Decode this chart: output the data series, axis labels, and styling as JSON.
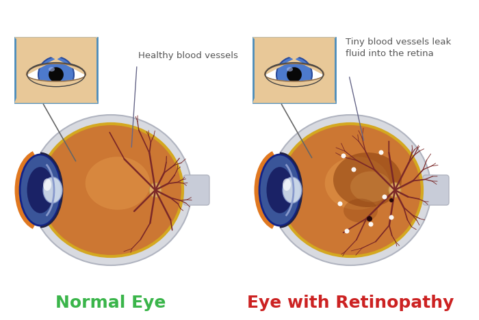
{
  "bg_color": "#ffffff",
  "title_normal": "Normal Eye",
  "title_retino": "Eye with Retinopathy",
  "title_normal_color": "#3ab54a",
  "title_retino_color": "#cc2222",
  "label_normal": "Healthy blood vessels",
  "label_retino": "Tiny blood vessels leak\nfluid into the retina",
  "label_color": "#555555",
  "sclera_color": "#d8dae0",
  "sclera_edge": "#b0b4c0",
  "retina_color": "#cc7733",
  "retina_dark": "#a85520",
  "retina_center": "#e8a050",
  "gold_ring_color": "#d4a820",
  "cornea_blue": "#4466bb",
  "cornea_dark_blue": "#2233aa",
  "cornea_edge": "#112288",
  "lens_white": "#d8e4f0",
  "lens_edge": "#8899cc",
  "vessel_color": "#7a2828",
  "optic_disc_color": "#ddaa66",
  "nerve_color": "#c8ccd8",
  "thumb_bg": "#e8c898",
  "thumb_border": "#4a8cbb",
  "lesion_brown": "#8b4010",
  "lesion_light": "#cc8844",
  "exudate_white": "#ffffff",
  "figsize": [
    7.0,
    4.68
  ],
  "dpi": 100
}
